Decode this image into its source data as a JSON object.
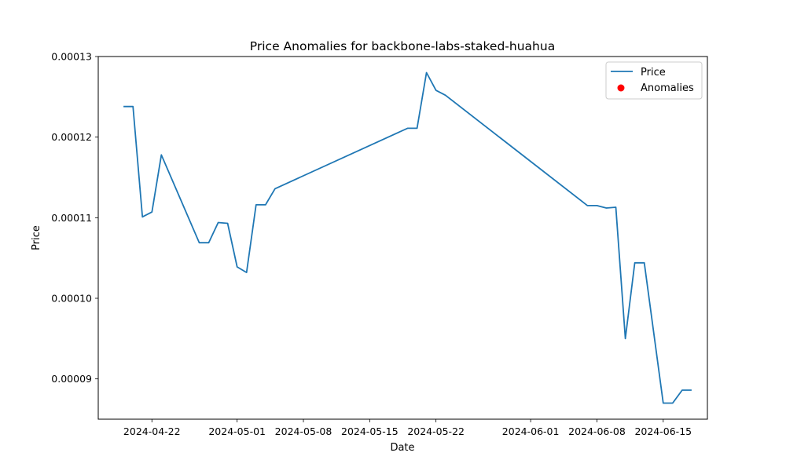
{
  "chart_data": {
    "type": "line",
    "title": "Price Anomalies for backbone-labs-staked-huahua",
    "xlabel": "Date",
    "ylabel": "Price",
    "xlim": [
      "2024-04-16T08:00",
      "2024-06-19T16:00"
    ],
    "ylim": [
      8.5e-05,
      0.00013
    ],
    "x_ticks": [
      "2024-04-22",
      "2024-05-01",
      "2024-05-08",
      "2024-05-15",
      "2024-05-22",
      "2024-06-01",
      "2024-06-08",
      "2024-06-15"
    ],
    "y_ticks": [
      "0.00009",
      "0.00010",
      "0.00011",
      "0.00012",
      "0.00013"
    ],
    "grid": false,
    "legend_position": "top-right",
    "colors": {
      "price": "#1f77b4",
      "anomalies": "#ff0000"
    },
    "series": [
      {
        "name": "Price",
        "kind": "line",
        "x": [
          "2024-04-19",
          "2024-04-20",
          "2024-04-21",
          "2024-04-22",
          "2024-04-23",
          "2024-04-27",
          "2024-04-28",
          "2024-04-29",
          "2024-04-30",
          "2024-05-01",
          "2024-05-02",
          "2024-05-03",
          "2024-05-04",
          "2024-05-05",
          "2024-05-19",
          "2024-05-20",
          "2024-05-21",
          "2024-05-22",
          "2024-05-23",
          "2024-06-07",
          "2024-06-08",
          "2024-06-09",
          "2024-06-10",
          "2024-06-11",
          "2024-06-12",
          "2024-06-13",
          "2024-06-15",
          "2024-06-16",
          "2024-06-17",
          "2024-06-18"
        ],
        "y": [
          0.0001238,
          0.0001238,
          0.0001101,
          0.0001107,
          0.0001178,
          0.0001069,
          0.0001069,
          0.0001094,
          0.0001093,
          0.0001039,
          0.0001032,
          0.0001116,
          0.0001116,
          0.0001136,
          0.0001211,
          0.0001211,
          0.000128,
          0.0001258,
          0.0001252,
          0.0001115,
          0.0001115,
          0.0001112,
          0.0001113,
          9.5e-05,
          0.0001044,
          0.0001044,
          8.7e-05,
          8.7e-05,
          8.86e-05,
          8.86e-05
        ]
      },
      {
        "name": "Anomalies",
        "kind": "scatter",
        "x": [],
        "y": []
      }
    ]
  }
}
